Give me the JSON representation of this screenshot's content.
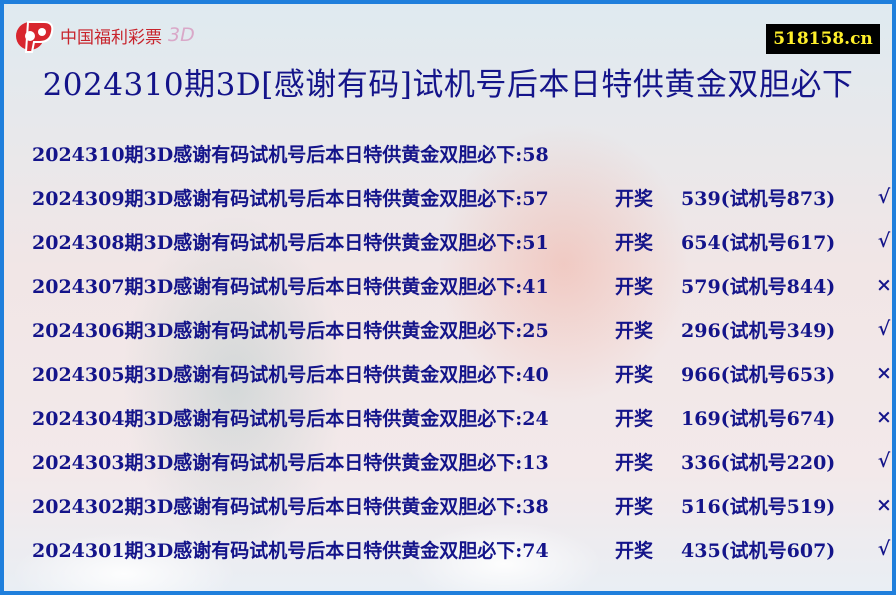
{
  "logo": {
    "text": "中国福利彩票",
    "suffix": "3D",
    "brand_color": "#c8242c"
  },
  "site_badge": "518158.cn",
  "title": "2024310期3D[感谢有码]试机号后本日特供黄金双胆必下",
  "current": {
    "text": "2024310期3D感谢有码试机号后本日特供黄金双胆必下:58"
  },
  "draw_label": "开奖",
  "rows": [
    {
      "prefix": "2024309期3D感谢有码试机号后本日特供黄金双胆必下:57",
      "result": "539(试机号873)",
      "mark": "√"
    },
    {
      "prefix": "2024308期3D感谢有码试机号后本日特供黄金双胆必下:51",
      "result": "654(试机号617)",
      "mark": "√"
    },
    {
      "prefix": "2024307期3D感谢有码试机号后本日特供黄金双胆必下:41",
      "result": "579(试机号844)",
      "mark": "×"
    },
    {
      "prefix": "2024306期3D感谢有码试机号后本日特供黄金双胆必下:25",
      "result": "296(试机号349)",
      "mark": "√"
    },
    {
      "prefix": "2024305期3D感谢有码试机号后本日特供黄金双胆必下:40",
      "result": "966(试机号653)",
      "mark": "×"
    },
    {
      "prefix": "2024304期3D感谢有码试机号后本日特供黄金双胆必下:24",
      "result": "169(试机号674)",
      "mark": "×"
    },
    {
      "prefix": "2024303期3D感谢有码试机号后本日特供黄金双胆必下:13",
      "result": "336(试机号220)",
      "mark": "√"
    },
    {
      "prefix": "2024302期3D感谢有码试机号后本日特供黄金双胆必下:38",
      "result": "516(试机号519)",
      "mark": "×"
    },
    {
      "prefix": "2024301期3D感谢有码试机号后本日特供黄金双胆必下:74",
      "result": "435(试机号607)",
      "mark": "√"
    }
  ]
}
